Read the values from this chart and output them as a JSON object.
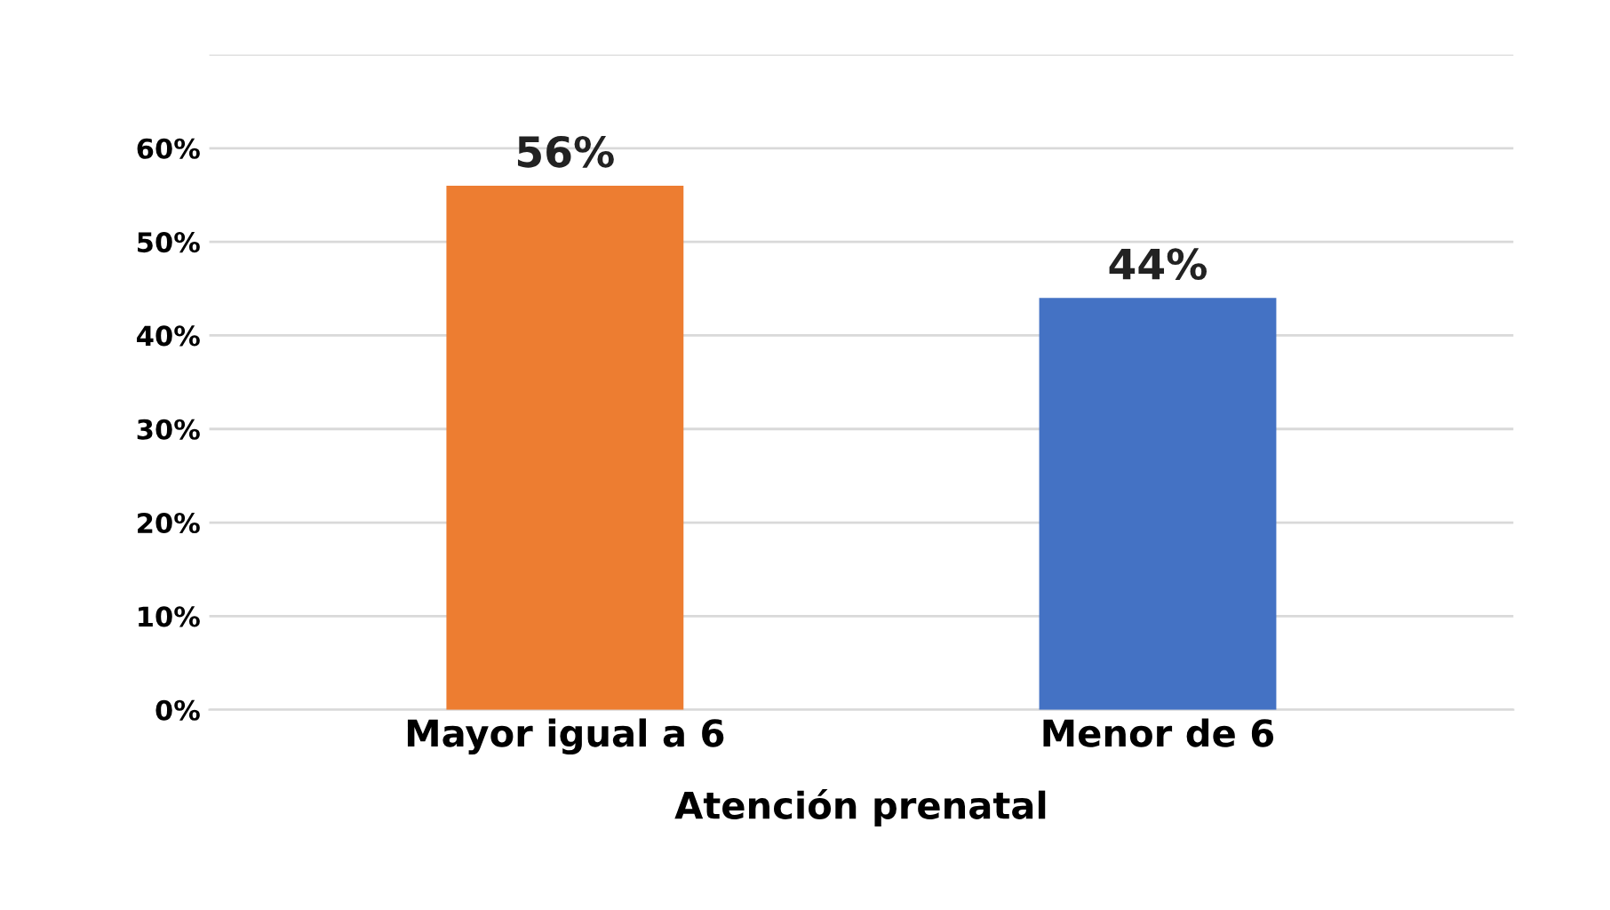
{
  "chart_data": {
    "type": "bar",
    "xlabel": "Atención prenatal",
    "categories": [
      "Mayor igual a 6",
      "Menor de 6"
    ],
    "values": [
      56,
      44
    ],
    "colors": [
      "#ed7d31",
      "#4472c4"
    ],
    "value_labels": [
      "56%",
      "44%"
    ],
    "ylim": [
      0,
      70
    ],
    "yticks": [
      {
        "value": 0,
        "label": "0%"
      },
      {
        "value": 10,
        "label": "10%"
      },
      {
        "value": 20,
        "label": "20%"
      },
      {
        "value": 30,
        "label": "30%"
      },
      {
        "value": 40,
        "label": "40%"
      },
      {
        "value": 50,
        "label": "50%"
      },
      {
        "value": 60,
        "label": "60%"
      },
      {
        "value": 70,
        "label": null
      }
    ],
    "grid": "y"
  }
}
